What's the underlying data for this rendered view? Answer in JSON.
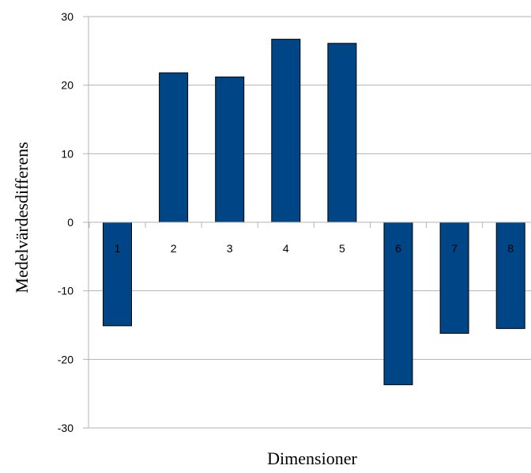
{
  "chart_data": {
    "type": "bar",
    "title": "",
    "xlabel": "Dimensioner",
    "ylabel": "Medelvärdesdifferens",
    "categories": [
      "1",
      "2",
      "3",
      "4",
      "5",
      "6",
      "7",
      "8"
    ],
    "values": [
      -15.1,
      21.8,
      21.2,
      26.7,
      26.1,
      -23.7,
      -16.2,
      -15.5
    ],
    "ylim": [
      -30,
      30
    ],
    "yticks": [
      "-30",
      "-20",
      "-10",
      "0",
      "10",
      "20",
      "30"
    ],
    "grid": true,
    "legend": "none",
    "colors": {
      "bar": "#004586",
      "bar_edge": "#000000",
      "grid": "#b3b3b3",
      "text": "#000000"
    }
  }
}
